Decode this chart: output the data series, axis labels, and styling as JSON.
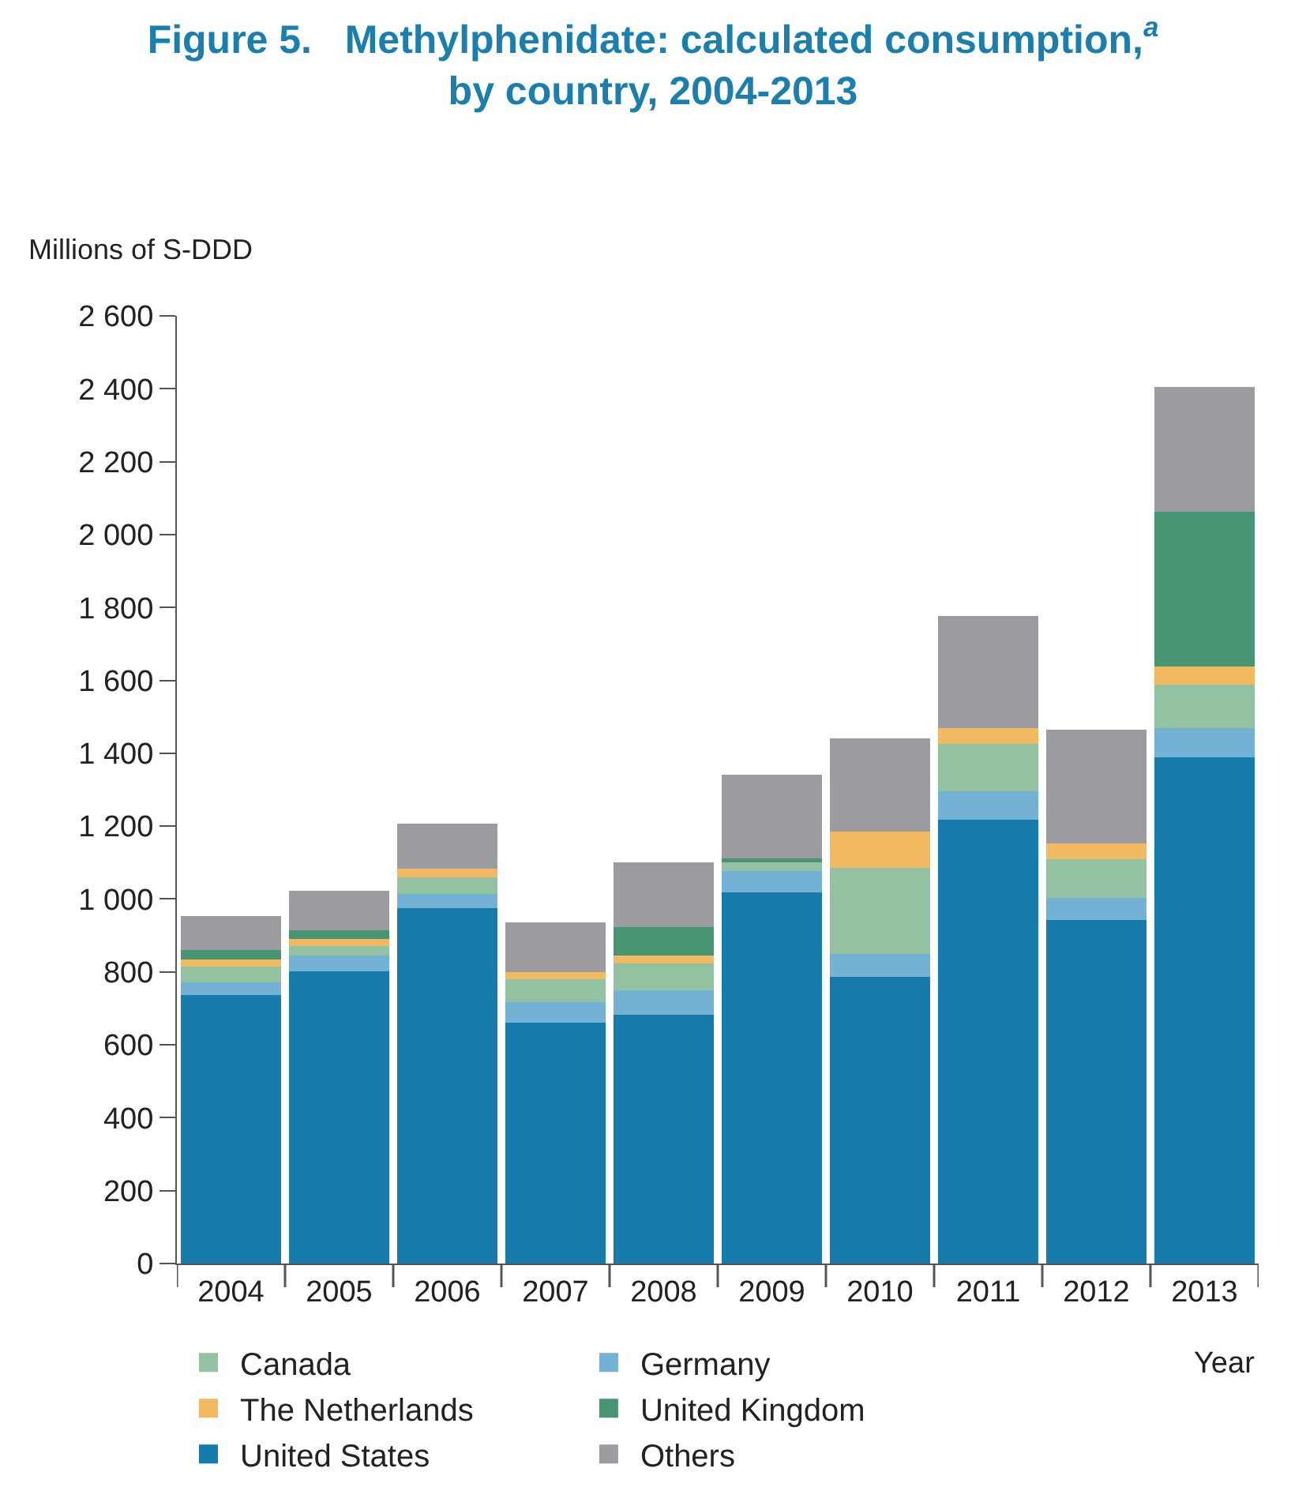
{
  "chart_data": {
    "type": "bar",
    "stacked": true,
    "title": "Figure 5.   Methylphenidate: calculated consumption,$^{a}$ by country, 2004-2013",
    "ylabel": "Millions of S-DDD",
    "xlabel": "Year",
    "categories": [
      "2004",
      "2005",
      "2006",
      "2007",
      "2008",
      "2009",
      "2010",
      "2011",
      "2012",
      "2013"
    ],
    "series": [
      {
        "name": "United States",
        "color": "#177cac",
        "values": [
          737,
          801,
          974,
          661,
          683,
          1018,
          786,
          1218,
          943,
          1388
        ]
      },
      {
        "name": "Germany",
        "color": "#73b2d4",
        "values": [
          35,
          45,
          41,
          57,
          66,
          59,
          63,
          77,
          61,
          81
        ]
      },
      {
        "name": "Canada",
        "color": "#92c2a2",
        "values": [
          43,
          26,
          45,
          62,
          74,
          27,
          236,
          131,
          106,
          119
        ]
      },
      {
        "name": "The Netherlands",
        "color": "#f0b962",
        "values": [
          19,
          19,
          23,
          20,
          21,
          0,
          100,
          43,
          43,
          49
        ]
      },
      {
        "name": "United Kingdom",
        "color": "#489573",
        "values": [
          27,
          24,
          0,
          0,
          80,
          8,
          0,
          0,
          0,
          426
        ]
      },
      {
        "name": "Others",
        "color": "#9b9c9f",
        "values": [
          93,
          108,
          124,
          135,
          176,
          229,
          256,
          307,
          311,
          342
        ]
      }
    ],
    "ylim": [
      0,
      2600
    ],
    "yticks": [
      0,
      200,
      400,
      600,
      800,
      {
        "value": 1000,
        "label": "1 000"
      },
      {
        "value": 1200,
        "label": "1 200"
      },
      {
        "value": 1400,
        "label": "1 400"
      },
      {
        "value": 1600,
        "label": "1 600"
      },
      {
        "value": 1800,
        "label": "1 800"
      },
      {
        "value": 2000,
        "label": "2 000"
      },
      {
        "value": 2200,
        "label": "2 200"
      },
      {
        "value": 2400,
        "label": "2 400"
      },
      {
        "value": 2600,
        "label": "2 600"
      }
    ],
    "legend": "bottom"
  }
}
